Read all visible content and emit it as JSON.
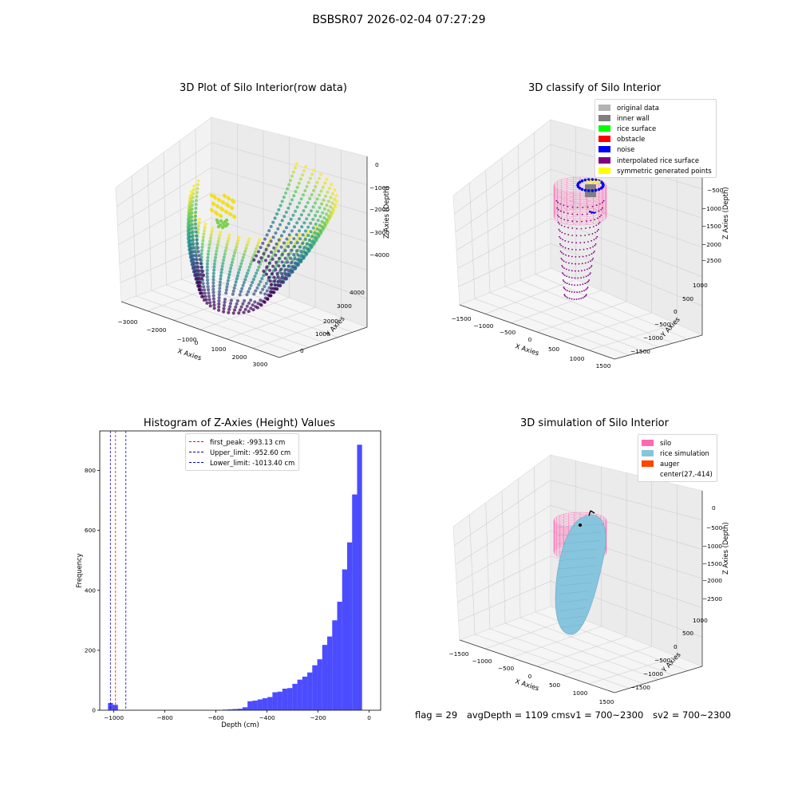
{
  "figure_title": "BSBSR07 2026-02-04 07:27:29",
  "footer": {
    "flag": "flag = 29",
    "avg": "avgDepth = 1109 cmsv1 = 700~2300",
    "sv2": "sv2 = 700~2300"
  },
  "colors": {
    "original": "#b3b3b3",
    "inner_wall": "#7f7f7f",
    "rice_surface": "#00ff00",
    "obstacle": "#ff0000",
    "noise": "#0000ff",
    "interp": "#800080",
    "symmetric": "#ffff00",
    "silo": "#ff69b4",
    "rice_sim": "#87c4de",
    "auger": "#ff4500",
    "hist": "#0000ff"
  },
  "chart_data": [
    {
      "type": "scatter3d",
      "title": "3D Plot of Silo Interior(row data)",
      "xlabel": "X Axies",
      "ylabel": "Y Axies",
      "zlabel": "Z Axies (Depth)",
      "xticks": [
        "−3000",
        "−2000",
        "−1000",
        "0",
        "1000",
        "2000",
        "3000"
      ],
      "yticks": [
        "0",
        "1000",
        "2000",
        "3000",
        "4000"
      ],
      "zticks": [
        "0",
        "−1000",
        "−2000",
        "−3000",
        "−4000"
      ],
      "colormap": "viridis"
    },
    {
      "type": "scatter3d",
      "title": "3D classify of Silo Interior",
      "xlabel": "X Axies",
      "ylabel": "Y Axies",
      "zlabel": "Z Axies (Depth)",
      "xticks": [
        "−1500",
        "−1000",
        "−500",
        "0",
        "500",
        "1000",
        "1500"
      ],
      "yticks": [
        "−1500",
        "−1000",
        "−500",
        "0",
        "500",
        "1000"
      ],
      "zticks": [
        "−500",
        "−1000",
        "−1500",
        "−2000",
        "−2500"
      ],
      "legend": [
        {
          "label": "original data",
          "color": "#b3b3b3"
        },
        {
          "label": "inner wall",
          "color": "#7f7f7f"
        },
        {
          "label": "rice surface",
          "color": "#00ff00"
        },
        {
          "label": "obstacle",
          "color": "#ff0000"
        },
        {
          "label": "noise",
          "color": "#0000ff"
        },
        {
          "label": "interpolated rice surface",
          "color": "#800080"
        },
        {
          "label": "symmetric generated points",
          "color": "#ffff00"
        }
      ]
    },
    {
      "type": "bar",
      "title": "Histogram of Z-Axies (Height) Values",
      "xlabel": "Depth (cm)",
      "ylabel": "Frequency",
      "xlim": [
        -1055,
        45
      ],
      "ylim": [
        0,
        932
      ],
      "xticks": [
        -1000,
        -800,
        -600,
        -400,
        -200,
        0
      ],
      "yticks": [
        0,
        200,
        400,
        600,
        800
      ],
      "bin_width": 19.5,
      "bins": [
        {
          "x": -1013,
          "y": 24
        },
        {
          "x": -993.5,
          "y": 18
        },
        {
          "x": -564,
          "y": 2
        },
        {
          "x": -544.5,
          "y": 3
        },
        {
          "x": -525,
          "y": 4
        },
        {
          "x": -505.5,
          "y": 5
        },
        {
          "x": -486,
          "y": 10
        },
        {
          "x": -466.5,
          "y": 30
        },
        {
          "x": -447,
          "y": 32
        },
        {
          "x": -427.5,
          "y": 36
        },
        {
          "x": -408,
          "y": 40
        },
        {
          "x": -388.5,
          "y": 44
        },
        {
          "x": -369,
          "y": 60
        },
        {
          "x": -349.5,
          "y": 62
        },
        {
          "x": -330,
          "y": 72
        },
        {
          "x": -310.5,
          "y": 74
        },
        {
          "x": -291,
          "y": 88
        },
        {
          "x": -271.5,
          "y": 102
        },
        {
          "x": -252,
          "y": 112
        },
        {
          "x": -232.5,
          "y": 126
        },
        {
          "x": -213,
          "y": 150
        },
        {
          "x": -193.5,
          "y": 170
        },
        {
          "x": -174,
          "y": 218
        },
        {
          "x": -154.5,
          "y": 246
        },
        {
          "x": -135,
          "y": 300
        },
        {
          "x": -115.5,
          "y": 362
        },
        {
          "x": -96,
          "y": 470
        },
        {
          "x": -76.5,
          "y": 560
        },
        {
          "x": -57,
          "y": 720
        },
        {
          "x": -37.5,
          "y": 886
        }
      ],
      "vlines": [
        {
          "label": "first_peak: -993.13 cm",
          "x": -993.13,
          "color": "#ff0000"
        },
        {
          "label": "Upper_limit: -952.60 cm",
          "x": -952.6,
          "color": "#0000cc"
        },
        {
          "label": "Lower_limit: -1013.40 cm",
          "x": -1013.4,
          "color": "#0000cc"
        }
      ]
    },
    {
      "type": "surface3d",
      "title": "3D simulation of Silo Interior",
      "xlabel": "X Axies",
      "ylabel": "Y Axies",
      "zlabel": "Z Axies (Depth)",
      "xticks": [
        "−1500",
        "−1000",
        "−500",
        "0",
        "500",
        "1000",
        "1500"
      ],
      "yticks": [
        "−1500",
        "−1000",
        "−500",
        "0",
        "500",
        "1000"
      ],
      "zticks": [
        "0",
        "−500",
        "−1000",
        "−1500",
        "−2000",
        "−2500"
      ],
      "legend": [
        {
          "label": "silo",
          "color": "#ff69b4"
        },
        {
          "label": "rice simulation",
          "color": "#87c4de"
        },
        {
          "label": "auger",
          "color": "#ff4500"
        },
        {
          "label": "center(27,-414)",
          "color": ""
        }
      ]
    }
  ]
}
